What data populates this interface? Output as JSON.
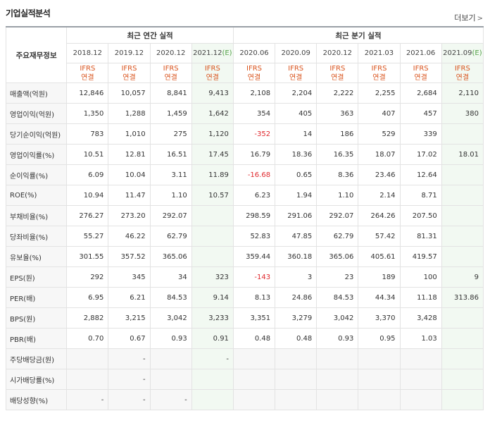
{
  "title": "기업실적분석",
  "more_label": "더보기",
  "more_icon": "chevron-right-icon",
  "row_header_label": "주요재무정보",
  "group_annual": "최근 연간 실적",
  "group_quarter": "최근 분기 실적",
  "periods": [
    {
      "label": "2018.12",
      "est": false
    },
    {
      "label": "2019.12",
      "est": false
    },
    {
      "label": "2020.12",
      "est": false
    },
    {
      "label": "2021.12",
      "est": true
    },
    {
      "label": "2020.06",
      "est": false
    },
    {
      "label": "2020.09",
      "est": false
    },
    {
      "label": "2020.12",
      "est": false
    },
    {
      "label": "2021.03",
      "est": false
    },
    {
      "label": "2021.06",
      "est": false
    },
    {
      "label": "2021.09",
      "est": true
    }
  ],
  "est_mark": "(E)",
  "ifrs_label": "IFRS",
  "consolidated_label": "연결",
  "colors": {
    "negative": "#e0282d",
    "ifrs": "#d9541e",
    "estimate_bg": "#f2f9f2",
    "estimate_mark": "#56a34a"
  },
  "rows": [
    {
      "label": "매출액(억원)",
      "values": [
        "12,846",
        "10,057",
        "8,841",
        "9,413",
        "2,108",
        "2,204",
        "2,222",
        "2,255",
        "2,684",
        "2,110"
      ]
    },
    {
      "label": "영업이익(억원)",
      "values": [
        "1,350",
        "1,288",
        "1,459",
        "1,642",
        "354",
        "405",
        "363",
        "407",
        "457",
        "380"
      ]
    },
    {
      "label": "당기순이익(억원)",
      "values": [
        "783",
        "1,010",
        "275",
        "1,120",
        "-352",
        "14",
        "186",
        "529",
        "339",
        ""
      ]
    },
    {
      "label": "영업이익률(%)",
      "values": [
        "10.51",
        "12.81",
        "16.51",
        "17.45",
        "16.79",
        "18.36",
        "16.35",
        "18.07",
        "17.02",
        "18.01"
      ]
    },
    {
      "label": "순이익률(%)",
      "values": [
        "6.09",
        "10.04",
        "3.11",
        "11.89",
        "-16.68",
        "0.65",
        "8.36",
        "23.46",
        "12.64",
        ""
      ]
    },
    {
      "label": "ROE(%)",
      "values": [
        "10.94",
        "11.47",
        "1.10",
        "10.57",
        "6.23",
        "1.94",
        "1.10",
        "2.14",
        "8.71",
        ""
      ]
    },
    {
      "label": "부채비율(%)",
      "values": [
        "276.27",
        "273.20",
        "292.07",
        "",
        "298.59",
        "291.06",
        "292.07",
        "264.26",
        "207.50",
        ""
      ]
    },
    {
      "label": "당좌비율(%)",
      "values": [
        "55.27",
        "46.22",
        "62.79",
        "",
        "52.83",
        "47.85",
        "62.79",
        "57.42",
        "81.31",
        ""
      ]
    },
    {
      "label": "유보율(%)",
      "values": [
        "301.55",
        "357.52",
        "365.06",
        "",
        "359.44",
        "360.18",
        "365.06",
        "405.61",
        "419.57",
        ""
      ]
    },
    {
      "label": "EPS(원)",
      "values": [
        "292",
        "345",
        "34",
        "323",
        "-143",
        "3",
        "23",
        "189",
        "100",
        "9"
      ]
    },
    {
      "label": "PER(배)",
      "values": [
        "6.95",
        "6.21",
        "84.53",
        "9.14",
        "8.13",
        "24.86",
        "84.53",
        "44.34",
        "11.18",
        "313.86"
      ]
    },
    {
      "label": "BPS(원)",
      "values": [
        "2,882",
        "3,215",
        "3,042",
        "3,233",
        "3,351",
        "3,279",
        "3,042",
        "3,370",
        "3,428",
        ""
      ]
    },
    {
      "label": "PBR(배)",
      "values": [
        "0.70",
        "0.67",
        "0.93",
        "0.91",
        "0.48",
        "0.48",
        "0.93",
        "0.95",
        "1.03",
        ""
      ]
    },
    {
      "label": "주당배당금(원)",
      "values": [
        "",
        "-",
        "",
        "-",
        "",
        "",
        "",
        "",
        "",
        ""
      ]
    },
    {
      "label": "시가배당률(%)",
      "values": [
        "",
        "-",
        "",
        "",
        "",
        "",
        "",
        "",
        "",
        ""
      ]
    },
    {
      "label": "배당성향(%)",
      "values": [
        "-",
        "-",
        "-",
        "",
        "",
        "",
        "",
        "",
        "",
        ""
      ]
    }
  ]
}
